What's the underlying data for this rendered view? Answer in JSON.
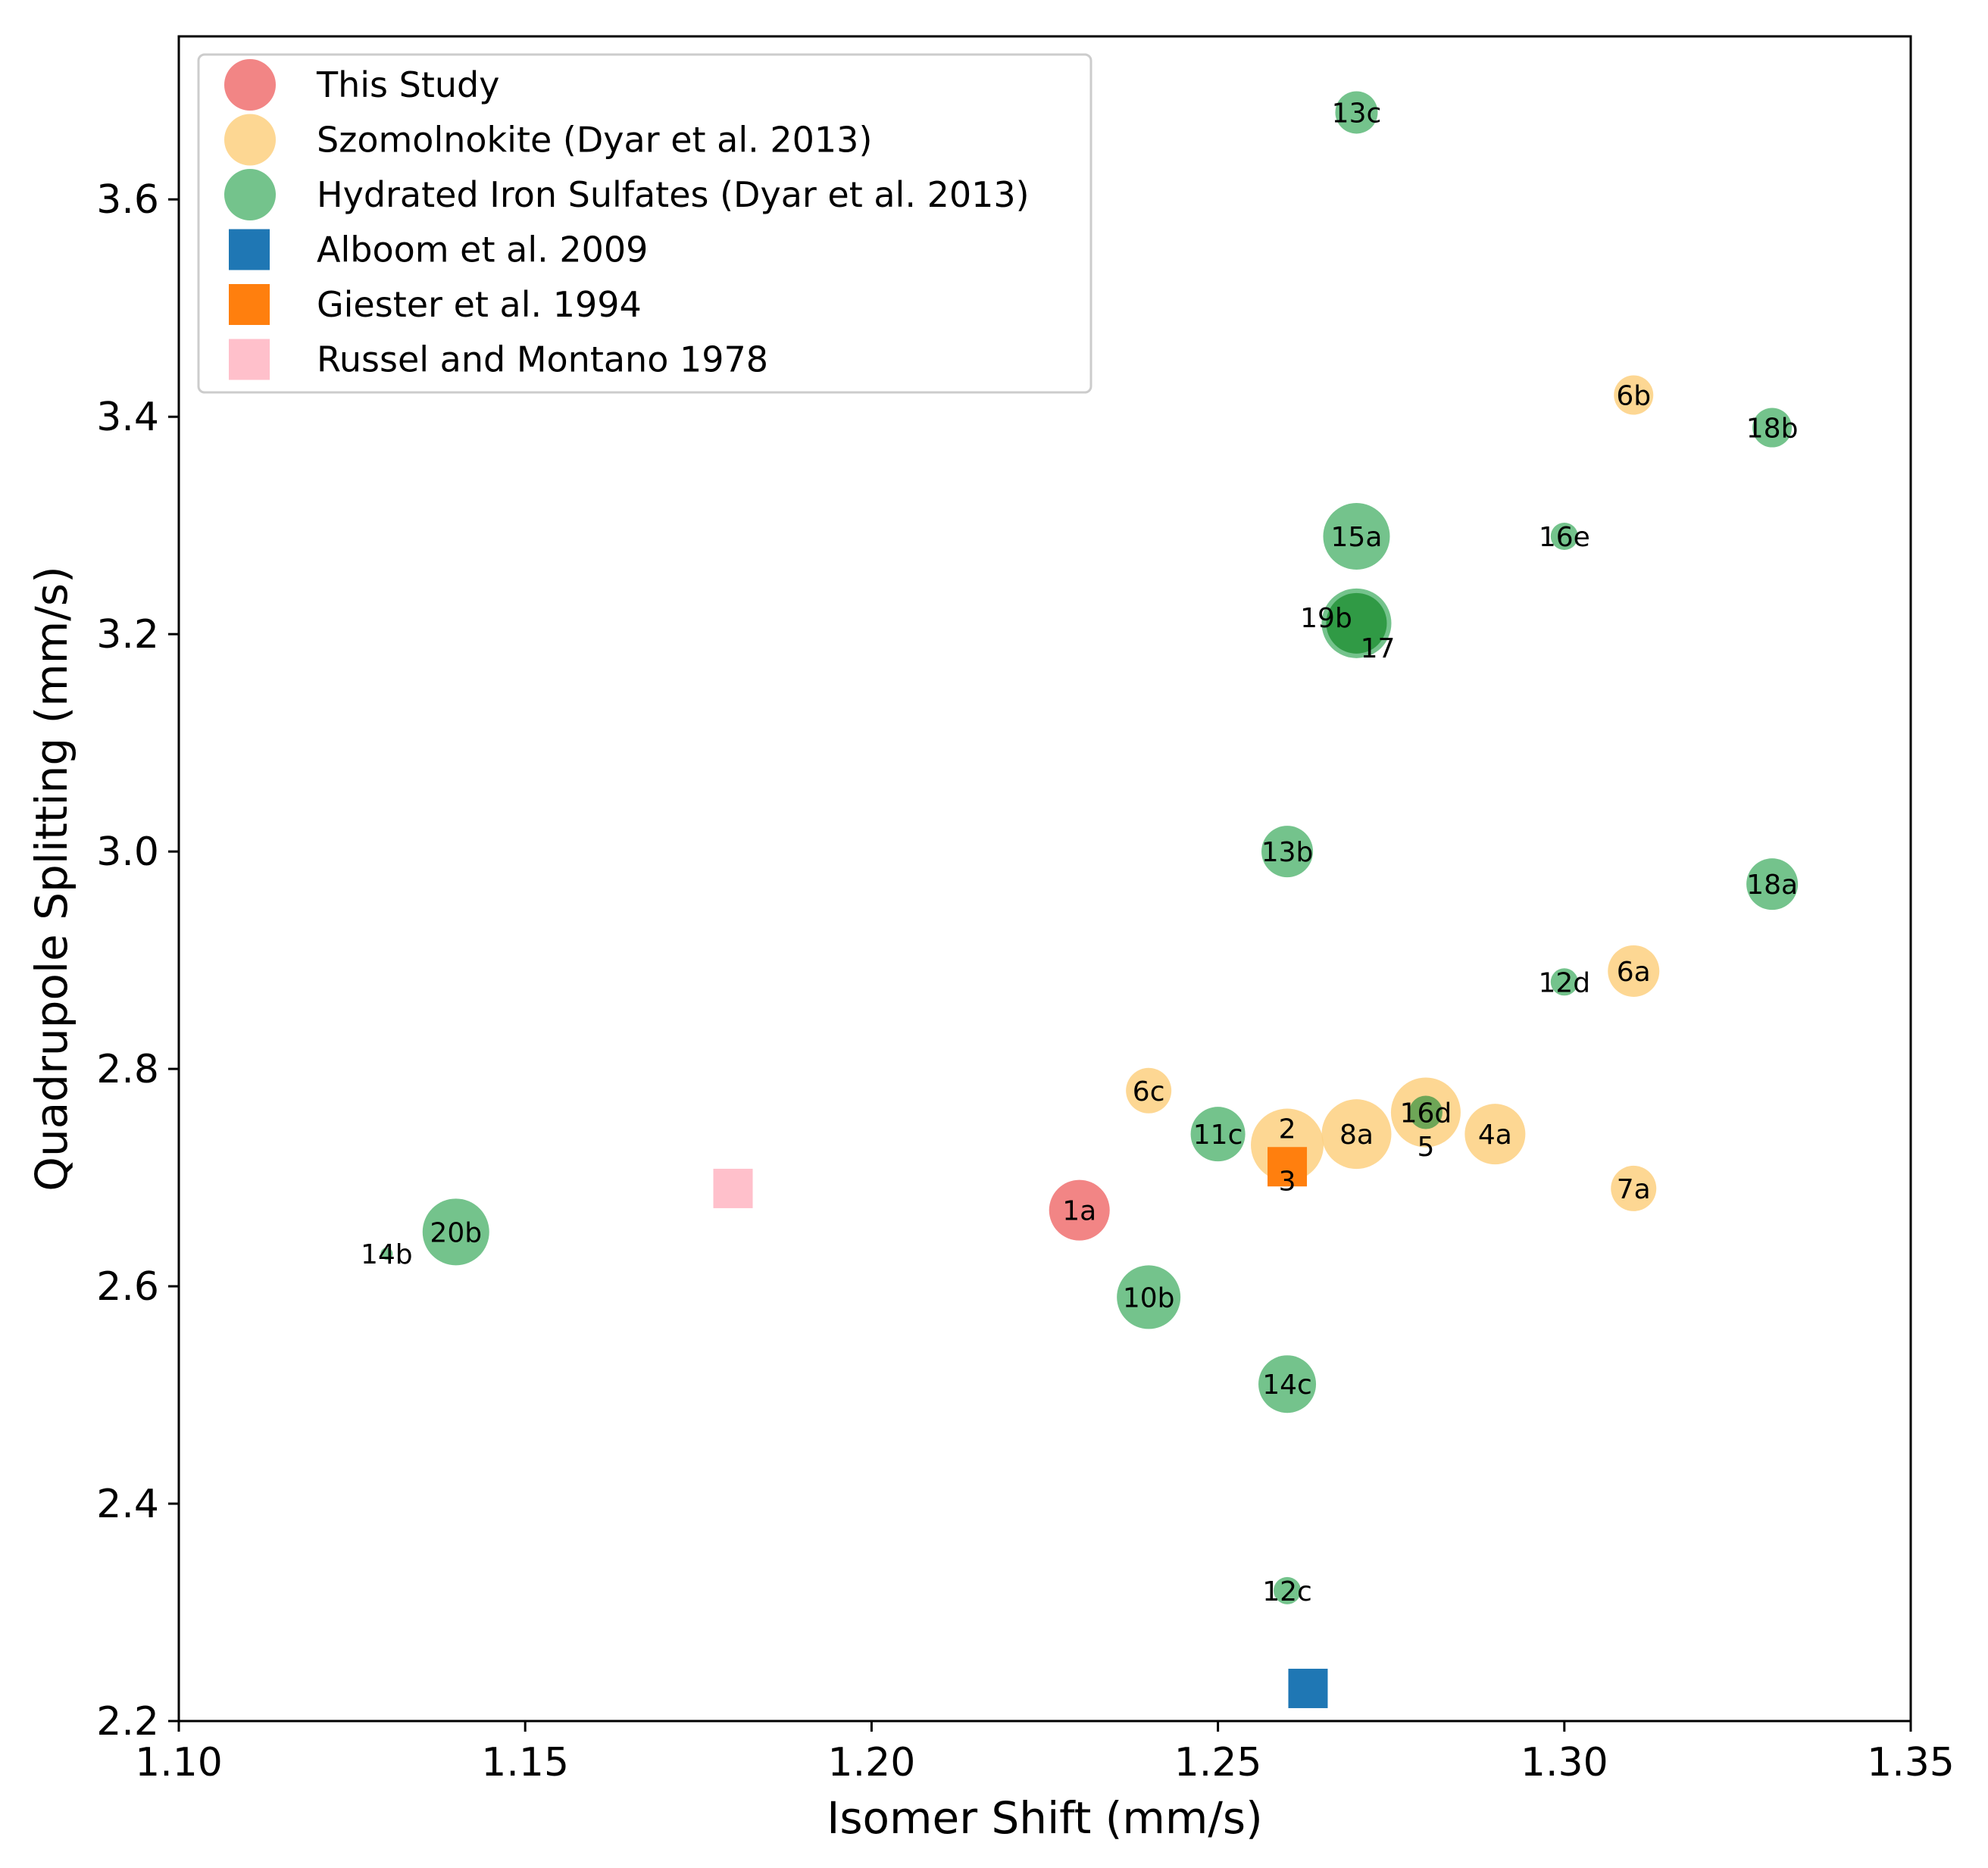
{
  "chart_data": {
    "type": "scatter",
    "xlabel": "Isomer Shift (mm/s)",
    "ylabel": "Quadrupole Splitting (mm/s)",
    "xlim": [
      1.1,
      1.35
    ],
    "ylim": [
      2.2,
      3.75
    ],
    "xticks": [
      "1.10",
      "1.15",
      "1.20",
      "1.25",
      "1.30",
      "1.35"
    ],
    "yticks": [
      "2.2",
      "2.4",
      "2.6",
      "2.8",
      "3.0",
      "3.2",
      "3.4",
      "3.6"
    ],
    "legend_position": "top-left",
    "series": [
      {
        "name": "This Study",
        "marker": "circle",
        "color": "#f07070",
        "points": [
          {
            "label": "1a",
            "x": 1.23,
            "y": 2.67,
            "size": 40
          }
        ]
      },
      {
        "name": "Szomolnokite (Dyar et al. 2013)",
        "marker": "circle",
        "color": "#fdd080",
        "points": [
          {
            "label": "2",
            "x": 1.26,
            "y": 2.73,
            "size": 48
          },
          {
            "label": "3",
            "x": 1.26,
            "y": 2.7,
            "size": 0
          },
          {
            "label": "4a",
            "x": 1.29,
            "y": 2.74,
            "size": 40
          },
          {
            "label": "5",
            "x": 1.28,
            "y": 2.75,
            "size": 0
          },
          {
            "label": "6a",
            "x": 1.31,
            "y": 2.89,
            "size": 34
          },
          {
            "label": "6b",
            "x": 1.31,
            "y": 3.42,
            "size": 26
          },
          {
            "label": "6c",
            "x": 1.24,
            "y": 2.78,
            "size": 30
          },
          {
            "label": "7a",
            "x": 1.31,
            "y": 2.69,
            "size": 30
          },
          {
            "label": "8a",
            "x": 1.27,
            "y": 2.74,
            "size": 46
          },
          {
            "label": "16d",
            "x": 1.28,
            "y": 2.76,
            "size": 46
          }
        ]
      },
      {
        "name": "Hydrated Iron Sulfates (Dyar et al. 2013)",
        "marker": "circle",
        "color": "#5cb878",
        "points": [
          {
            "label": "10b",
            "x": 1.24,
            "y": 2.59,
            "size": 42
          },
          {
            "label": "11c",
            "x": 1.25,
            "y": 2.74,
            "size": 36
          },
          {
            "label": "12c",
            "x": 1.26,
            "y": 2.32,
            "size": 18
          },
          {
            "label": "12d",
            "x": 1.3,
            "y": 2.88,
            "size": 18
          },
          {
            "label": "13b",
            "x": 1.26,
            "y": 3.0,
            "size": 34
          },
          {
            "label": "13c",
            "x": 1.27,
            "y": 3.68,
            "size": 28
          },
          {
            "label": "14b",
            "x": 1.13,
            "y": 2.63,
            "size": 8
          },
          {
            "label": "14c",
            "x": 1.26,
            "y": 2.51,
            "size": 38
          },
          {
            "label": "15a",
            "x": 1.27,
            "y": 3.29,
            "size": 44
          },
          {
            "label": "16e",
            "x": 1.3,
            "y": 3.29,
            "size": 18
          },
          {
            "label": "17",
            "x": 1.27,
            "y": 3.21,
            "size": 46
          },
          {
            "label": "18a",
            "x": 1.33,
            "y": 2.97,
            "size": 34
          },
          {
            "label": "18b",
            "x": 1.33,
            "y": 3.39,
            "size": 26
          },
          {
            "label": "19b",
            "x": 1.27,
            "y": 3.21,
            "size": 0
          },
          {
            "label": "20b",
            "x": 1.14,
            "y": 2.65,
            "size": 44
          }
        ]
      },
      {
        "name": "Alboom et al. 2009",
        "marker": "square",
        "color": "#1f77b4",
        "points": [
          {
            "label": "",
            "x": 1.263,
            "y": 2.23
          }
        ]
      },
      {
        "name": "Giester et al. 1994",
        "marker": "square",
        "color": "#ff7f0e",
        "points": [
          {
            "label": "",
            "x": 1.26,
            "y": 2.71
          }
        ]
      },
      {
        "name": "Russel and Montano 1978",
        "marker": "square",
        "color": "#ffc0cb",
        "points": [
          {
            "label": "",
            "x": 1.18,
            "y": 2.69
          }
        ]
      }
    ]
  }
}
